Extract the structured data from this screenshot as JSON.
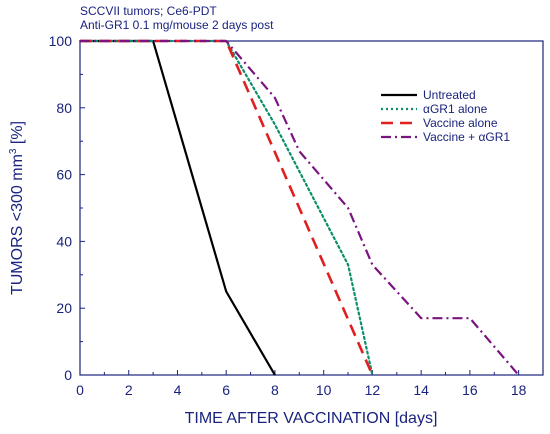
{
  "chart_data": {
    "type": "line",
    "annotations": [
      "SCCVII tumors; Ce6-PDT",
      "Anti-GR1 0.1 mg/mouse 2 days post"
    ],
    "xlabel": "TIME AFTER VACCINATION [days]",
    "ylabel_parts": {
      "before_sup": "TUMORS <300 mm",
      "sup": "3",
      "after_sup": " [%]"
    },
    "xlim": [
      0,
      19
    ],
    "ylim": [
      0,
      100
    ],
    "x_ticks": [
      0,
      2,
      4,
      6,
      8,
      10,
      12,
      14,
      16,
      18
    ],
    "y_ticks": [
      0,
      20,
      40,
      60,
      80,
      100
    ],
    "x_tick_labels": [
      "0",
      "2",
      "4",
      "6",
      "8",
      "10",
      "12",
      "14",
      "16",
      "18"
    ],
    "y_tick_labels": [
      "0",
      "20",
      "40",
      "60",
      "80",
      "100"
    ],
    "grid": false,
    "legend_position": "top-right",
    "series": [
      {
        "name": "Untreated",
        "color": "#000000",
        "dash": "solid",
        "points": [
          [
            0,
            100
          ],
          [
            3,
            100
          ],
          [
            6,
            25
          ],
          [
            8,
            0
          ]
        ]
      },
      {
        "name": "αGR1 alone",
        "color": "#0a8f6a",
        "dash": "dotted",
        "points": [
          [
            0,
            100
          ],
          [
            6,
            100
          ],
          [
            8,
            75
          ],
          [
            11,
            33
          ],
          [
            12,
            0
          ]
        ]
      },
      {
        "name": "Vaccine alone",
        "color": "#e02020",
        "dash": "dashed",
        "points": [
          [
            0,
            100
          ],
          [
            6,
            100
          ],
          [
            12,
            0
          ]
        ]
      },
      {
        "name": "Vaccine + αGR1",
        "color": "#7b1480",
        "dash": "dashdot",
        "points": [
          [
            0,
            100
          ],
          [
            6,
            100
          ],
          [
            8,
            83
          ],
          [
            9,
            67
          ],
          [
            11,
            50
          ],
          [
            12,
            33
          ],
          [
            14,
            17
          ],
          [
            16,
            17
          ],
          [
            18,
            0
          ]
        ]
      }
    ]
  }
}
